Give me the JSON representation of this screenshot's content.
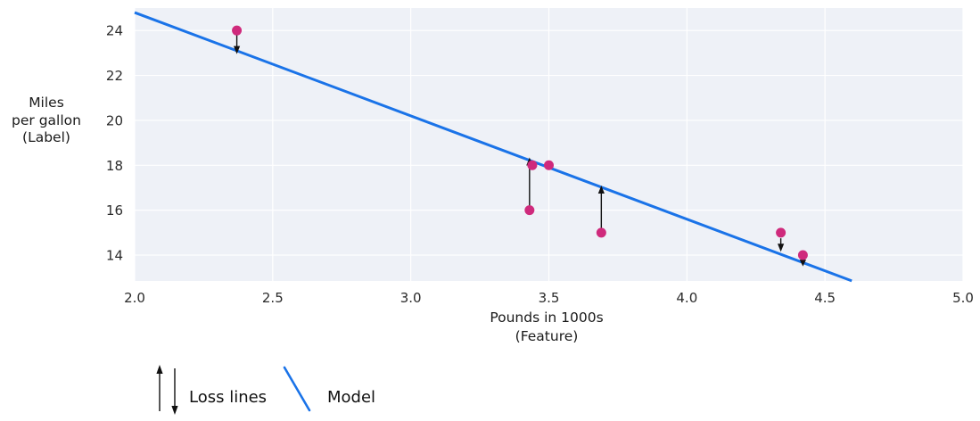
{
  "chart_data": {
    "type": "scatter",
    "title": "",
    "xlabel_lines": [
      "Pounds in 1000s",
      "(Feature)"
    ],
    "ylabel_lines": [
      "Miles",
      "per gallon",
      "(Label)"
    ],
    "xlim": [
      2.0,
      5.0
    ],
    "ylim": [
      12.85,
      25.0
    ],
    "grid": "on",
    "xticks": [
      {
        "v": 2.0,
        "label": "2.0"
      },
      {
        "v": 2.5,
        "label": "2.5"
      },
      {
        "v": 3.0,
        "label": "3.0"
      },
      {
        "v": 3.5,
        "label": "3.5"
      },
      {
        "v": 4.0,
        "label": "4.0"
      },
      {
        "v": 4.5,
        "label": "4.5"
      },
      {
        "v": 5.0,
        "label": "5.0"
      }
    ],
    "yticks": [
      {
        "v": 14,
        "label": "14"
      },
      {
        "v": 16,
        "label": "16"
      },
      {
        "v": 18,
        "label": "18"
      },
      {
        "v": 20,
        "label": "20"
      },
      {
        "v": 22,
        "label": "22"
      },
      {
        "v": 24,
        "label": "24"
      }
    ],
    "points": [
      {
        "x": 2.37,
        "y": 24
      },
      {
        "x": 3.43,
        "y": 16
      },
      {
        "x": 3.44,
        "y": 18
      },
      {
        "x": 3.5,
        "y": 18
      },
      {
        "x": 3.69,
        "y": 15
      },
      {
        "x": 4.34,
        "y": 15
      },
      {
        "x": 4.42,
        "y": 14
      }
    ],
    "model_line": {
      "slope": -4.6,
      "intercept": 34.0,
      "x_start": 2.0,
      "x_end": 4.597
    },
    "loss_arrows": [
      {
        "x": 2.37,
        "y_from": 23.8,
        "y_to": 22.95,
        "dir": "down"
      },
      {
        "x": 3.43,
        "y_from": 16.18,
        "y_to": 18.35,
        "dir": "up"
      },
      {
        "x": 3.69,
        "y_from": 15.2,
        "y_to": 17.1,
        "dir": "up"
      },
      {
        "x": 4.34,
        "y_from": 14.75,
        "y_to": 14.15,
        "dir": "down"
      },
      {
        "x": 4.42,
        "y_from": 13.8,
        "y_to": 13.5,
        "dir": "down"
      }
    ],
    "colors": {
      "point": "#cf2a7c",
      "model": "#1a73e8",
      "plot_bg": "#eef1f7",
      "grid": "#ffffff",
      "arrow": "#111111",
      "tick_text": "#2b2b2b"
    }
  },
  "legend": {
    "loss_label": "Loss lines",
    "model_label": "Model"
  }
}
